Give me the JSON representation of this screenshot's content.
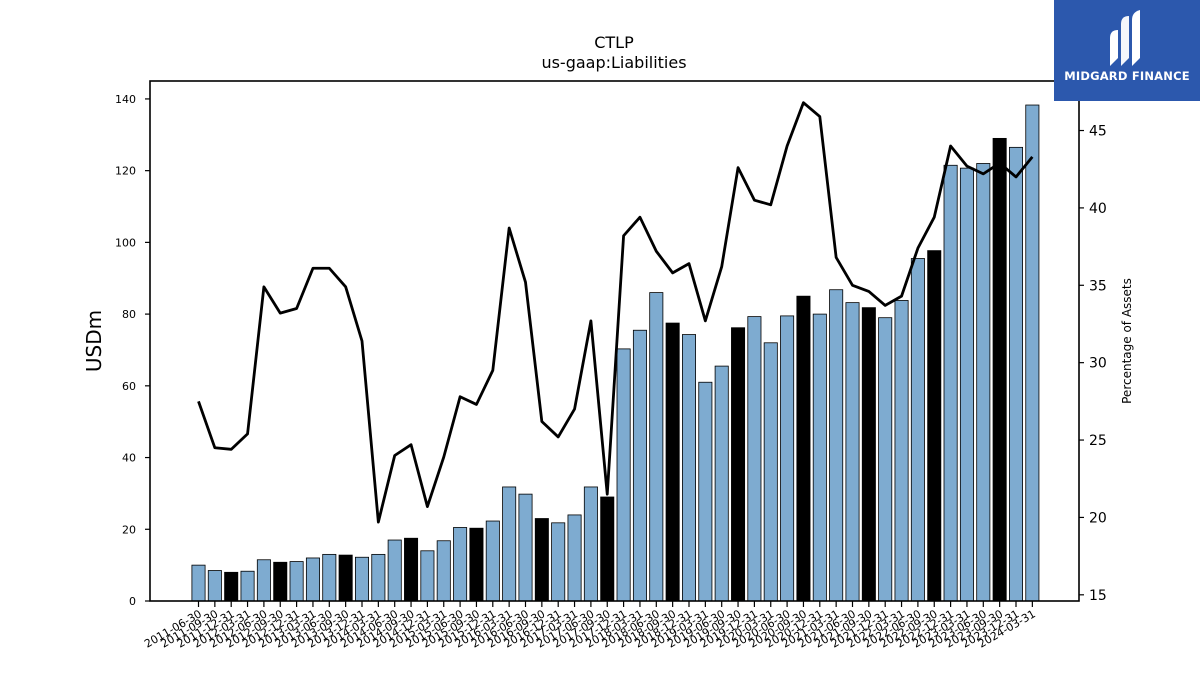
{
  "brand": {
    "name": "MIDGARD FINANCE",
    "bg_color": "#2c58ad",
    "text_color": "#ffffff"
  },
  "chart_data": {
    "type": "bar",
    "title": "CTLP",
    "subtitle": "us-gaap:Liabilities",
    "ylabel": "USDm",
    "y2label": "Percentage of Assets",
    "ylim": [
      0,
      145
    ],
    "y2lim": [
      14.6,
      48.2
    ],
    "yticks": [
      0,
      20,
      40,
      60,
      80,
      100,
      120,
      140
    ],
    "y2ticks": [
      15,
      20,
      25,
      30,
      35,
      40,
      45
    ],
    "colors": {
      "bar_default": "#7eabd0",
      "bar_year_end": "#000000",
      "bar_edge": "#000000",
      "line": "#000000"
    },
    "categories": [
      "2011-06-30",
      "2011-09-30",
      "2011-12-31",
      "2012-03-31",
      "2012-06-30",
      "2012-09-30",
      "2012-12-31",
      "2013-03-31",
      "2013-06-30",
      "2013-09-30",
      "2013-12-31",
      "2014-03-31",
      "2014-06-30",
      "2014-09-30",
      "2014-12-31",
      "2015-03-31",
      "2015-06-30",
      "2015-09-30",
      "2015-12-31",
      "2016-03-31",
      "2016-06-30",
      "2016-09-30",
      "2016-12-31",
      "2017-03-31",
      "2017-06-30",
      "2017-09-30",
      "2017-12-31",
      "2018-03-31",
      "2018-06-30",
      "2018-09-30",
      "2018-12-31",
      "2019-03-31",
      "2019-06-30",
      "2019-09-30",
      "2019-12-31",
      "2020-03-31",
      "2020-06-30",
      "2020-09-30",
      "2020-12-31",
      "2021-03-31",
      "2021-06-30",
      "2021-09-30",
      "2021-12-31",
      "2022-03-31",
      "2022-06-30",
      "2022-09-30",
      "2022-12-31",
      "2023-03-31",
      "2023-06-30",
      "2023-09-30",
      "2023-12-31",
      "2024-03-31"
    ],
    "tick_labels": [
      "2011-06-30",
      "2011-09-30",
      "2011-12-31",
      "2012-03-31",
      "2012-06-30",
      "2012-09-30",
      "2012-12-31",
      "2013-03-31",
      "2013-06-30",
      "2013-09-30",
      "2013-12-31",
      "2014-03-31",
      "2014-06-30",
      "2014-09-30",
      "2014-12-31",
      "2015-03-31",
      "2015-06-30",
      "2015-09-30",
      "2015-12-31",
      "2016-03-31",
      "2016-06-30",
      "2016-09-30",
      "2016-12-31",
      "2017-03-31",
      "2017-06-30",
      "2017-09-30",
      "2017-12-31",
      "2018-03-31",
      "2018-06-30",
      "2018-09-30",
      "2018-12-31",
      "2019-03-31",
      "2019-06-30",
      "2019-09-30",
      "2019-12-31",
      "2020-03-31",
      "2020-06-30",
      "2020-09-30",
      "2020-12-31",
      "2021-03-31",
      "2021-06-30",
      "2021-09-30",
      "2021-12-31",
      "2022-03-31",
      "2022-06-30",
      "2022-09-30",
      "2022-12-31",
      "2023-03-31",
      "2023-06-30",
      "2023-09-30",
      "2023-12-31",
      "2024-03-31"
    ],
    "series": [
      {
        "type": "bar",
        "axis": "left",
        "values": [
          10,
          8.5,
          8,
          8.3,
          11.5,
          10.8,
          11,
          12,
          13,
          12.8,
          12.2,
          13,
          17,
          17.5,
          14,
          16.8,
          20.5,
          20.3,
          22.3,
          31.8,
          29.8,
          23,
          21.8,
          24,
          31.8,
          29,
          70.3,
          75.5,
          86,
          77.5,
          74.3,
          61,
          65.5,
          76.2,
          79.3,
          72,
          79.5,
          85,
          80,
          86.8,
          83.2,
          81.8,
          79,
          83.8,
          95.5,
          97.7,
          121.5,
          120.7,
          122,
          129,
          126.5,
          138.3
        ],
        "year_end": [
          false,
          false,
          true,
          false,
          false,
          true,
          false,
          false,
          false,
          true,
          false,
          false,
          false,
          true,
          false,
          false,
          false,
          true,
          false,
          false,
          false,
          true,
          false,
          false,
          false,
          true,
          false,
          false,
          false,
          true,
          false,
          false,
          false,
          true,
          false,
          false,
          false,
          true,
          false,
          false,
          false,
          true,
          false,
          false,
          false,
          true,
          false,
          false,
          false,
          true,
          false,
          false
        ]
      },
      {
        "type": "line",
        "axis": "right",
        "values": [
          27.5,
          24.5,
          24.4,
          25.4,
          34.9,
          33.2,
          33.5,
          36.1,
          36.1,
          34.9,
          31.4,
          19.7,
          24.0,
          24.7,
          20.7,
          23.9,
          27.8,
          27.3,
          29.5,
          38.7,
          35.2,
          26.2,
          25.2,
          27.0,
          32.7,
          21.5,
          38.2,
          39.4,
          37.2,
          35.8,
          36.4,
          32.7,
          36.2,
          42.6,
          40.5,
          40.2,
          44.0,
          46.8,
          45.9,
          36.8,
          35.0,
          34.6,
          33.7,
          34.3,
          37.4,
          39.4,
          44.0,
          42.7,
          42.2,
          42.9,
          42.0,
          43.3
        ]
      }
    ]
  }
}
